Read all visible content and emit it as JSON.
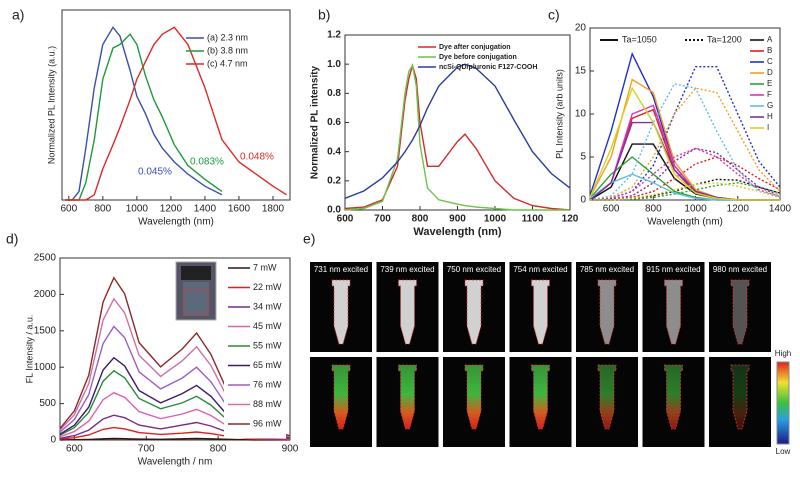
{
  "chart_data": [
    {
      "type": "line",
      "label": "a)",
      "x_label": "Wavelength (nm)",
      "y_label": "Normalized PL Intensity (a.u.)",
      "xlim": [
        560,
        1900
      ],
      "ylim": [
        0,
        1.1
      ],
      "xticks": [
        600,
        800,
        1000,
        1200,
        1400,
        1600,
        1800
      ],
      "yticks": [],
      "x": [
        580,
        620,
        660,
        700,
        750,
        800,
        860,
        900,
        960,
        1000,
        1050,
        1100,
        1150,
        1220,
        1300,
        1400,
        1500,
        1600,
        1700,
        1800,
        1880
      ],
      "series": [
        {
          "name": "(a) 2.3 nm",
          "color": "#3a4fb0",
          "values": [
            0,
            0,
            0.05,
            0.3,
            0.65,
            0.9,
            1.0,
            0.95,
            0.75,
            0.6,
            0.5,
            0.38,
            0.3,
            0.22,
            0.15,
            0.08,
            0.03,
            null,
            null,
            null,
            null
          ]
        },
        {
          "name": "(b) 3.8 nm",
          "color": "#1e9a3a",
          "values": [
            0,
            0,
            0,
            0.1,
            0.35,
            0.7,
            0.88,
            0.9,
            0.96,
            0.9,
            0.72,
            0.58,
            0.48,
            0.32,
            0.2,
            0.12,
            0.05,
            null,
            null,
            null,
            null
          ]
        },
        {
          "name": "(c) 4.7 nm",
          "color": "#e02828",
          "values": [
            0,
            0,
            0,
            0,
            0.03,
            0.18,
            0.32,
            0.42,
            0.58,
            0.7,
            0.8,
            0.9,
            0.96,
            1.0,
            0.9,
            0.65,
            0.35,
            0.22,
            0.15,
            0.08,
            0.03
          ]
        }
      ],
      "annotations": [
        {
          "text": "0.045%",
          "color": "#3a4fb0"
        },
        {
          "text": "0.083%",
          "color": "#1e9a3a"
        },
        {
          "text": "0.048%",
          "color": "#e02828"
        }
      ]
    },
    {
      "type": "line",
      "label": "b)",
      "x_label": "Wavelength (nm)",
      "y_label": "Normalized PL intensity",
      "xlim": [
        600,
        1200
      ],
      "ylim": [
        0,
        1.2
      ],
      "xticks": [
        600,
        700,
        800,
        900,
        1000,
        1100,
        {
          "value": 1200,
          "label": "120"
        }
      ],
      "yticks": [
        {
          "value": 0,
          "label": "0.0"
        },
        0.2,
        0.4,
        0.6,
        0.8,
        {
          "value": 1,
          "label": "1.0"
        },
        1.2
      ],
      "x": [
        600,
        650,
        700,
        740,
        760,
        770,
        780,
        790,
        800,
        820,
        850,
        900,
        920,
        950,
        1000,
        1050,
        1100,
        1150,
        1200
      ],
      "series": [
        {
          "name": "Dye after conjugation",
          "color": "#d62a2a",
          "values": [
            0.01,
            0.02,
            0.07,
            0.3,
            0.75,
            0.9,
            0.99,
            0.9,
            0.6,
            0.3,
            0.3,
            0.47,
            0.52,
            0.42,
            0.2,
            0.08,
            0.03,
            0.01,
            0
          ]
        },
        {
          "name": "Dye before conjugation",
          "color": "#6cc24a",
          "values": [
            0,
            0.01,
            0.06,
            0.35,
            0.8,
            0.95,
            0.99,
            0.85,
            0.45,
            0.15,
            0.07,
            0.04,
            0.03,
            0.02,
            0.01,
            0,
            0,
            0,
            0
          ]
        },
        {
          "name": "ncSi-QD/pluronic F127-COOH",
          "color": "#2a3e9a",
          "values": [
            0.08,
            0.13,
            0.22,
            0.33,
            0.4,
            0.44,
            0.48,
            0.53,
            0.58,
            0.7,
            0.85,
            0.98,
            1.0,
            0.97,
            0.85,
            0.62,
            0.4,
            0.25,
            0.15
          ]
        }
      ]
    },
    {
      "type": "line",
      "label": "c)",
      "x_label": "Wavelength (nm)",
      "y_label": "PL Intensity (arb units)",
      "xlim": [
        500,
        1400
      ],
      "ylim": [
        0,
        20
      ],
      "xticks": [
        600,
        800,
        1000,
        1200,
        1400
      ],
      "yticks": [
        0,
        5,
        10,
        15,
        20
      ],
      "style_legend": [
        {
          "label": "Ta=1050",
          "dash": "solid"
        },
        {
          "label": "Ta=1200",
          "dash": "dotted"
        }
      ],
      "x": [
        500,
        600,
        700,
        800,
        900,
        1000,
        1100,
        1200,
        1300,
        1400
      ],
      "series": [
        {
          "name": "A",
          "color": "#111111",
          "values": [
            0,
            1.5,
            6.5,
            6.5,
            2.5,
            0.7,
            0.2,
            0,
            0,
            0
          ],
          "values_dotted": [
            0,
            0,
            0.2,
            0.5,
            1,
            1.8,
            2.4,
            2.3,
            1.5,
            0.8
          ]
        },
        {
          "name": "B",
          "color": "#e02020",
          "values": [
            0,
            2,
            9.5,
            10.5,
            3.5,
            0.8,
            0.2,
            0,
            0,
            0
          ],
          "values_dotted": [
            0,
            0,
            0.3,
            1,
            2.5,
            4.2,
            5,
            4,
            2.5,
            1.2
          ]
        },
        {
          "name": "C",
          "color": "#2030d0",
          "values": [
            0.5,
            8,
            17,
            12,
            4,
            1,
            0.3,
            0,
            0,
            0
          ],
          "values_dotted": [
            0,
            0.2,
            1,
            4,
            10,
            15.5,
            15.5,
            10,
            4.5,
            1.5
          ]
        },
        {
          "name": "D",
          "color": "#f0a020",
          "values": [
            0.3,
            5,
            14,
            12.5,
            4.5,
            1.2,
            0.3,
            0,
            0,
            0
          ],
          "values_dotted": [
            0,
            0.3,
            1.5,
            5,
            10,
            13,
            12.5,
            8,
            3.5,
            1
          ]
        },
        {
          "name": "E",
          "color": "#30a030",
          "values": [
            0.2,
            3,
            5,
            3,
            1,
            0.3,
            0,
            0,
            0,
            0
          ],
          "values_dotted": [
            0,
            0,
            0.1,
            0.3,
            0.7,
            1.2,
            1.7,
            2,
            1.5,
            0.8
          ]
        },
        {
          "name": "F",
          "color": "#e030c0",
          "values": [
            0,
            2,
            10,
            11,
            4,
            1,
            0.3,
            0,
            0,
            0
          ],
          "values_dotted": [
            0,
            0.2,
            1,
            3,
            5,
            6,
            5,
            3,
            1.2,
            0.4
          ]
        },
        {
          "name": "G",
          "color": "#60c0e0",
          "values": [
            0.2,
            2,
            3,
            2,
            0.8,
            0.2,
            0,
            0,
            0,
            0
          ],
          "values_dotted": [
            0,
            0.5,
            3,
            9,
            13.5,
            13,
            8,
            3.5,
            1,
            0.3
          ]
        },
        {
          "name": "H",
          "color": "#8030a0",
          "values": [
            0,
            2,
            9,
            9,
            3.5,
            1,
            0.3,
            0,
            0,
            0
          ],
          "values_dotted": [
            0,
            0.1,
            0.5,
            2,
            4.5,
            6,
            5.5,
            3.5,
            1.5,
            0.5
          ]
        },
        {
          "name": "I",
          "color": "#d8d020",
          "values": [
            0.3,
            6,
            13,
            9,
            3,
            0.8,
            0.2,
            0,
            0,
            0
          ],
          "values_dotted": [
            0,
            0,
            0.2,
            0.6,
            1.2,
            1.8,
            2,
            1.6,
            1,
            0.5
          ]
        }
      ]
    },
    {
      "type": "line",
      "label": "d)",
      "x_label": "Wavelength / nm",
      "y_label": "FL Intensity / a.u.",
      "xlim": [
        580,
        900
      ],
      "ylim": [
        0,
        2500
      ],
      "xticks": [
        600,
        700,
        800,
        900
      ],
      "yticks": [
        0,
        500,
        1000,
        1500,
        2000,
        2500
      ],
      "x": [
        580,
        600,
        620,
        640,
        655,
        670,
        690,
        720,
        750,
        770,
        790,
        820,
        850,
        900
      ],
      "series": [
        {
          "name": "7 mW",
          "color": "#3a1010",
          "values": [
            1,
            4,
            8,
            17,
            20,
            18,
            12,
            9,
            17,
            20,
            16,
            7,
            2,
            1
          ]
        },
        {
          "name": "22 mW",
          "color": "#e02020",
          "values": [
            12,
            31,
            68,
            145,
            170,
            153,
            102,
            77,
            94,
            110,
            88,
            39,
            13,
            4
          ]
        },
        {
          "name": "34 mW",
          "color": "#7a2a8a",
          "values": [
            24,
            61,
            136,
            289,
            340,
            306,
            204,
            153,
            204,
            240,
            192,
            84,
            29,
            10
          ]
        },
        {
          "name": "45 mW",
          "color": "#e060b0",
          "values": [
            46,
            117,
            260,
            553,
            650,
            585,
            390,
            293,
            357,
            420,
            336,
            147,
            50,
            17
          ]
        },
        {
          "name": "55 mW",
          "color": "#2a8a3a",
          "values": [
            67,
            171,
            380,
            808,
            950,
            855,
            570,
            428,
            510,
            600,
            480,
            210,
            72,
            24
          ]
        },
        {
          "name": "65 mW",
          "color": "#3a1a6a",
          "values": [
            79,
            203,
            452,
            961,
            1130,
            1017,
            678,
            509,
            638,
            750,
            600,
            263,
            90,
            30
          ]
        },
        {
          "name": "76 mW",
          "color": "#9a60c0",
          "values": [
            109,
            281,
            624,
            1326,
            1560,
            1404,
            936,
            702,
            850,
            1000,
            800,
            350,
            120,
            40
          ]
        },
        {
          "name": "88 mW",
          "color": "#d070a0",
          "values": [
            136,
            349,
            776,
            1649,
            1940,
            1746,
            1164,
            873,
            1088,
            1280,
            1024,
            448,
            154,
            51
          ]
        },
        {
          "name": "96 mW",
          "color": "#8a2a2a",
          "values": [
            156,
            401,
            892,
            1896,
            2230,
            2007,
            1338,
            1004,
            1250,
            1470,
            1176,
            515,
            176,
            59
          ]
        }
      ]
    }
  ],
  "image_panel": {
    "label": "e)",
    "titles": [
      "731 nm excited",
      "739 nm excited",
      "750 nm excited",
      "754 nm excited",
      "785 nm excited",
      "915 nm excited",
      "980 nm excited"
    ],
    "colorbar": {
      "high": "High",
      "low": "Low"
    }
  }
}
